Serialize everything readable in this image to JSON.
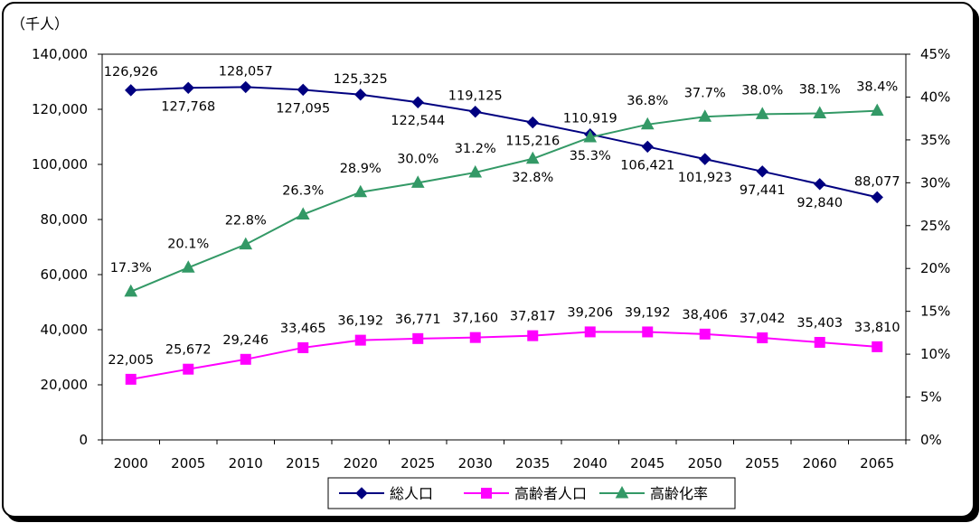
{
  "chart_data": {
    "type": "line",
    "y_unit_label": "（千人）",
    "categories": [
      "2000",
      "2005",
      "2010",
      "2015",
      "2020",
      "2025",
      "2030",
      "2035",
      "2040",
      "2045",
      "2050",
      "2055",
      "2060",
      "2065"
    ],
    "y_left": {
      "min": 0,
      "max": 140000,
      "step": 20000
    },
    "y_right": {
      "min": 0,
      "max": 45,
      "step": 5,
      "suffix": "%"
    },
    "series": [
      {
        "name": "総人口",
        "axis": "left",
        "color": "#000080",
        "marker": "diamond",
        "values": [
          126926,
          127768,
          128057,
          127095,
          125325,
          122544,
          119125,
          115216,
          110919,
          106421,
          101923,
          97441,
          92840,
          88077
        ],
        "labels": [
          "126,926",
          "127,768",
          "128,057",
          "127,095",
          "125,325",
          "122,544",
          "119,125",
          "115,216",
          "110,919",
          "106,421",
          "101,923",
          "97,441",
          "92,840",
          "88,077"
        ]
      },
      {
        "name": "高齢者人口",
        "axis": "left",
        "color": "#ff00ff",
        "marker": "square",
        "values": [
          22005,
          25672,
          29246,
          33465,
          36192,
          36771,
          37160,
          37817,
          39206,
          39192,
          38406,
          37042,
          35403,
          33810
        ],
        "labels": [
          "22,005",
          "25,672",
          "29,246",
          "33,465",
          "36,192",
          "36,771",
          "37,160",
          "37,817",
          "39,206",
          "39,192",
          "38,406",
          "37,042",
          "35,403",
          "33,810"
        ]
      },
      {
        "name": "高齢化率",
        "axis": "right",
        "color": "#339966",
        "marker": "triangle",
        "values": [
          17.3,
          20.1,
          22.8,
          26.3,
          28.9,
          30.0,
          31.2,
          32.8,
          35.3,
          36.8,
          37.7,
          38.0,
          38.1,
          38.4
        ],
        "labels": [
          "17.3%",
          "20.1%",
          "22.8%",
          "26.3%",
          "28.9%",
          "30.0%",
          "31.2%",
          "32.8%",
          "35.3%",
          "36.8%",
          "37.7%",
          "38.0%",
          "38.1%",
          "38.4%"
        ]
      }
    ],
    "legend_position": "bottom",
    "grid": false
  }
}
